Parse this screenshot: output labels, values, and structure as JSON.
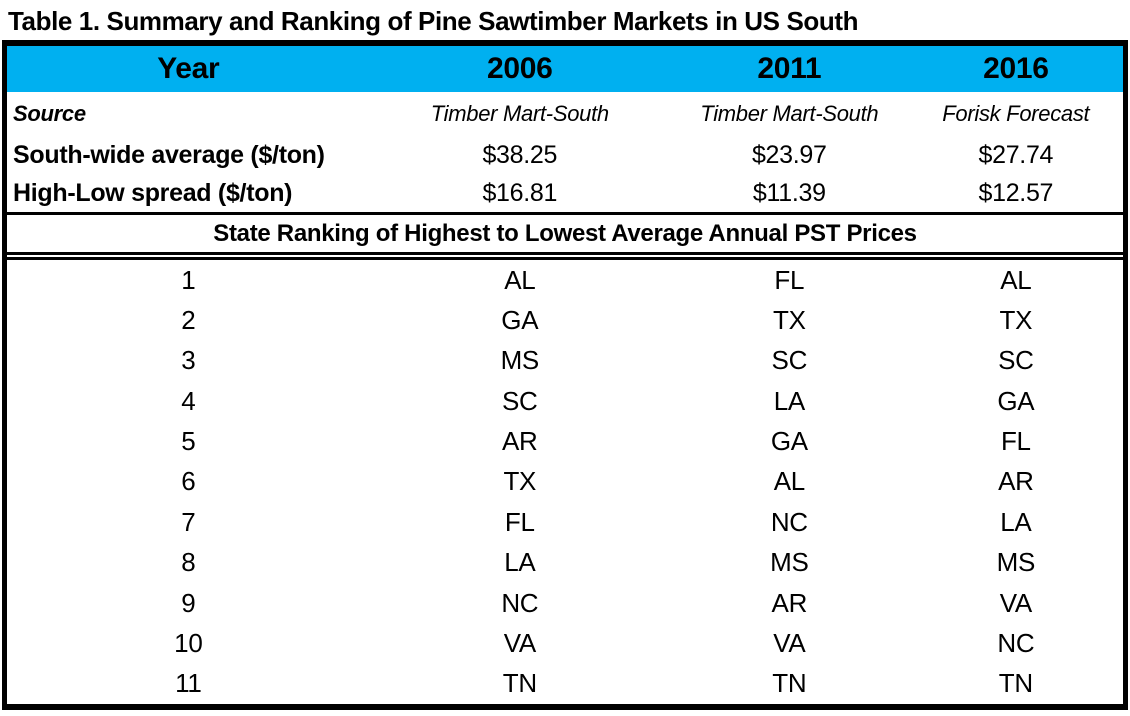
{
  "title": "Table 1. Summary and Ranking of Pine Sawtimber Markets in US South",
  "colors": {
    "header_bg": "#00B0F0",
    "border": "#000000",
    "text": "#000000"
  },
  "header": {
    "label": "Year",
    "years": [
      "2006",
      "2011",
      "2016"
    ]
  },
  "summary_rows": [
    {
      "label": "Source",
      "values": [
        "Timber Mart-South",
        "Timber Mart-South",
        "Forisk Forecast"
      ]
    },
    {
      "label": "South-wide average ($/ton)",
      "values": [
        "$38.25",
        "$23.97",
        "$27.74"
      ]
    },
    {
      "label": "High-Low spread ($/ton)",
      "values": [
        "$16.81",
        "$11.39",
        "$12.57"
      ]
    }
  ],
  "ranking_banner": "State Ranking of Highest to Lowest Average Annual PST Prices",
  "ranking_rows": [
    {
      "rank": "1",
      "states": [
        "AL",
        "FL",
        "AL"
      ]
    },
    {
      "rank": "2",
      "states": [
        "GA",
        "TX",
        "TX"
      ]
    },
    {
      "rank": "3",
      "states": [
        "MS",
        "SC",
        "SC"
      ]
    },
    {
      "rank": "4",
      "states": [
        "SC",
        "LA",
        "GA"
      ]
    },
    {
      "rank": "5",
      "states": [
        "AR",
        "GA",
        "FL"
      ]
    },
    {
      "rank": "6",
      "states": [
        "TX",
        "AL",
        "AR"
      ]
    },
    {
      "rank": "7",
      "states": [
        "FL",
        "NC",
        "LA"
      ]
    },
    {
      "rank": "8",
      "states": [
        "LA",
        "MS",
        "MS"
      ]
    },
    {
      "rank": "9",
      "states": [
        "NC",
        "AR",
        "VA"
      ]
    },
    {
      "rank": "10",
      "states": [
        "VA",
        "VA",
        "NC"
      ]
    },
    {
      "rank": "11",
      "states": [
        "TN",
        "TN",
        "TN"
      ]
    }
  ]
}
